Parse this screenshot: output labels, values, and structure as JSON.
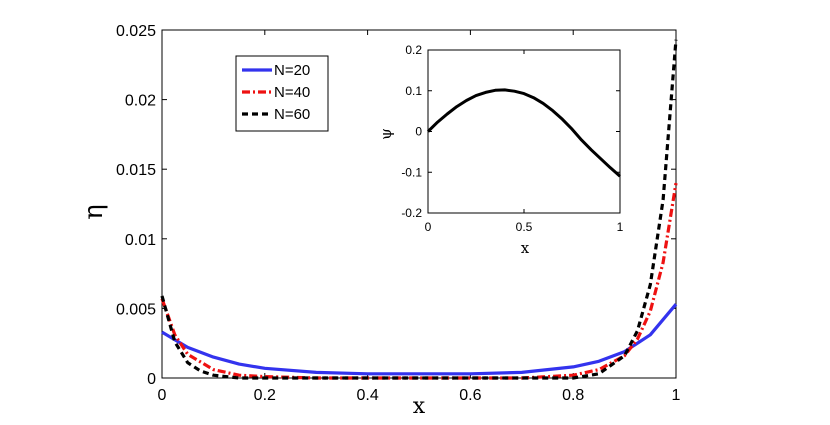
{
  "chart_data": [
    {
      "type": "line",
      "xlabel": "x",
      "ylabel": "η",
      "xlim": [
        0,
        1
      ],
      "ylim": [
        0,
        0.025
      ],
      "xticks": [
        "0",
        "0.2",
        "0.4",
        "0.6",
        "0.8",
        "1"
      ],
      "yticks": [
        "0",
        "0.005",
        "0.01",
        "0.015",
        "0.02",
        "0.025"
      ],
      "grid": false,
      "legend_placement": "top-left",
      "series": [
        {
          "name": "N=20",
          "color": "#3333ee",
          "style": "solid",
          "x": [
            0,
            0.05,
            0.1,
            0.15,
            0.2,
            0.3,
            0.4,
            0.5,
            0.6,
            0.7,
            0.8,
            0.85,
            0.9,
            0.95,
            1.0
          ],
          "y": [
            0.0033,
            0.0022,
            0.0015,
            0.001,
            0.0007,
            0.0004,
            0.0003,
            0.0003,
            0.0003,
            0.0004,
            0.0008,
            0.0012,
            0.0019,
            0.0031,
            0.0053
          ]
        },
        {
          "name": "N=40",
          "color": "#ee1111",
          "style": "dash-dot",
          "x": [
            0,
            0.025,
            0.05,
            0.1,
            0.15,
            0.2,
            0.3,
            0.4,
            0.5,
            0.6,
            0.7,
            0.8,
            0.85,
            0.9,
            0.925,
            0.95,
            0.975,
            1.0
          ],
          "y": [
            0.0057,
            0.0031,
            0.0017,
            0.0006,
            0.0002,
            0.0001,
            0.0,
            0.0,
            0.0,
            0.0,
            0.0,
            0.0002,
            0.0006,
            0.0016,
            0.0028,
            0.0048,
            0.0083,
            0.014
          ]
        },
        {
          "name": "N=60",
          "color": "#000000",
          "style": "dashed",
          "x": [
            0,
            0.025,
            0.05,
            0.075,
            0.1,
            0.15,
            0.2,
            0.3,
            0.4,
            0.5,
            0.6,
            0.7,
            0.8,
            0.85,
            0.9,
            0.925,
            0.95,
            0.975,
            1.0
          ],
          "y": [
            0.0059,
            0.0026,
            0.0011,
            0.0005,
            0.0002,
            0.0,
            0.0,
            0.0,
            0.0,
            0.0,
            0.0,
            0.0,
            0.0,
            0.0003,
            0.0016,
            0.0034,
            0.0067,
            0.0128,
            0.0243
          ]
        }
      ]
    },
    {
      "type": "line",
      "xlabel": "x",
      "ylabel": "ψ",
      "xlim": [
        0,
        1
      ],
      "ylim": [
        -0.2,
        0.2
      ],
      "xticks": [
        "0",
        "0.5",
        "1"
      ],
      "yticks": [
        "-0.2",
        "-0.1",
        "0",
        "0.1",
        "0.2"
      ],
      "grid": false,
      "series": [
        {
          "color": "#000000",
          "style": "solid",
          "x": [
            0,
            0.05,
            0.1,
            0.15,
            0.2,
            0.25,
            0.3,
            0.35,
            0.4,
            0.45,
            0.5,
            0.55,
            0.6,
            0.65,
            0.7,
            0.75,
            0.8,
            0.85,
            0.9,
            0.95,
            1.0
          ],
          "y": [
            0.0,
            0.023,
            0.043,
            0.061,
            0.076,
            0.088,
            0.096,
            0.101,
            0.102,
            0.099,
            0.093,
            0.083,
            0.069,
            0.051,
            0.03,
            0.006,
            -0.021,
            -0.045,
            -0.067,
            -0.089,
            -0.11
          ]
        }
      ]
    }
  ]
}
